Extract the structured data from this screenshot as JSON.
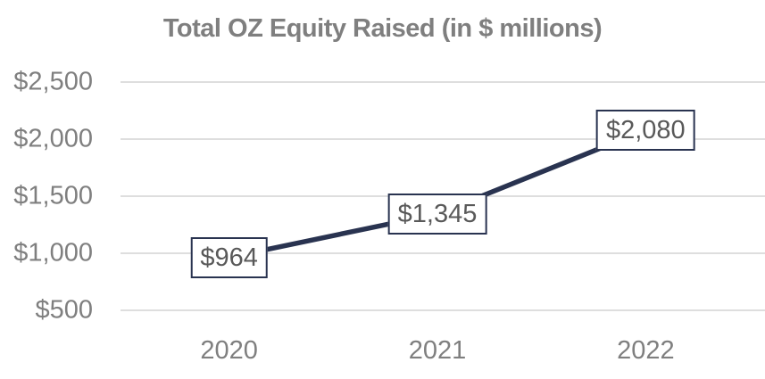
{
  "chart_data": {
    "type": "line",
    "title": "Total OZ Equity Raised (in $ millions)",
    "categories": [
      "2020",
      "2021",
      "2022"
    ],
    "values": [
      964,
      1345,
      2080
    ],
    "value_labels": [
      "$964",
      "$1,345",
      "$2,080"
    ],
    "xlabel": "",
    "ylabel": "",
    "ylim": [
      500,
      2500
    ],
    "yticks": [
      {
        "value": 2500,
        "label": "$2,500"
      },
      {
        "value": 2000,
        "label": "$2,000"
      },
      {
        "value": 1500,
        "label": "$1,500"
      },
      {
        "value": 1000,
        "label": "$1,000"
      },
      {
        "value": 500,
        "label": "$500"
      }
    ],
    "grid": true,
    "legend": "none",
    "colors": {
      "line": "#293350",
      "gridline": "#d9d9d9",
      "axis_text": "#7f7f7f",
      "title_text": "#7f7f7f",
      "data_label_text": "#595959",
      "data_label_bg": "#ffffff",
      "data_label_border": "#293350",
      "background": "#ffffff"
    }
  }
}
